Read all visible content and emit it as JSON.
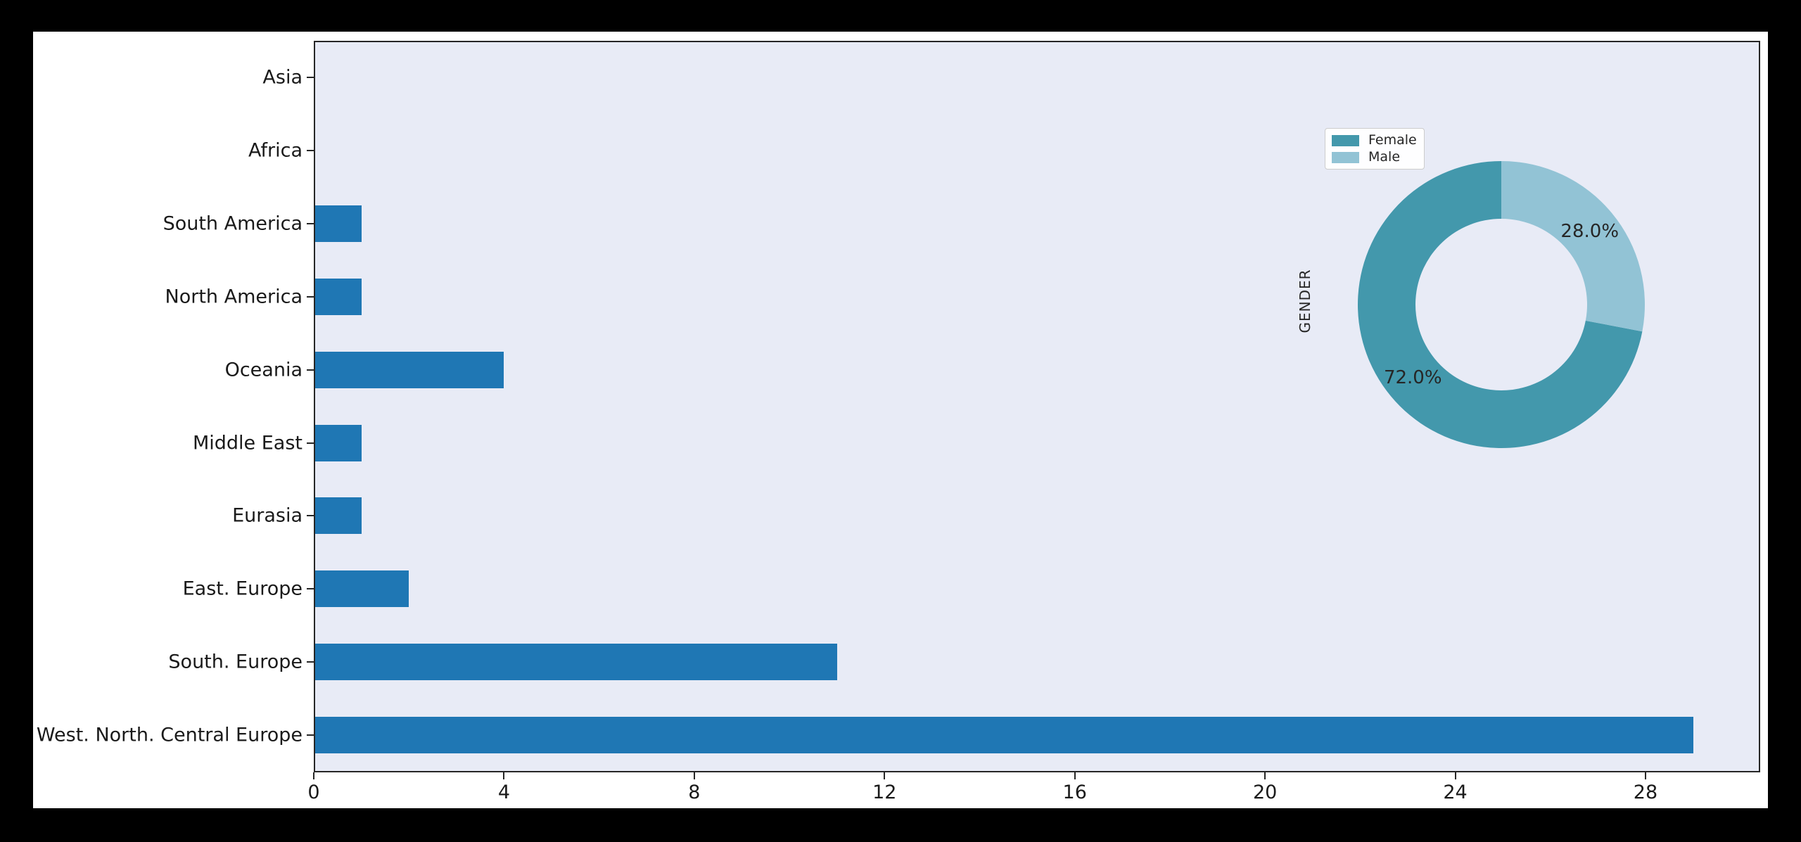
{
  "chart_data": [
    {
      "type": "bar",
      "orientation": "horizontal",
      "title": "",
      "xlabel": "",
      "ylabel": "",
      "categories": [
        "Asia",
        "Africa",
        "South America",
        "North America",
        "Oceania",
        "Middle East",
        "Eurasia",
        "East. Europe",
        "South. Europe",
        "West. North. Central Europe"
      ],
      "values": [
        0,
        0,
        1,
        1,
        4,
        1,
        1,
        2,
        11,
        29
      ],
      "x_ticks": [
        0,
        4,
        8,
        12,
        16,
        20,
        24,
        28
      ],
      "x_tick_labels": [
        "0",
        "4",
        "8",
        "12",
        "16",
        "20",
        "24",
        "28"
      ],
      "xlim": [
        0,
        30.4
      ],
      "grid": false,
      "bar_color": "#1f77b4",
      "plot_bg": "#e8ebf6",
      "axis_color": "#262626"
    },
    {
      "type": "pie",
      "subtype": "donut",
      "ylabel": "GENDER",
      "labels": [
        "Female",
        "Male"
      ],
      "values_percent": [
        72.0,
        28.0
      ],
      "pct_labels": [
        "72.0%",
        "28.0%"
      ],
      "colors": [
        "#4398ac",
        "#92c3d5"
      ],
      "start_angle_deg": 90,
      "counterclockwise": true,
      "donut_width_ratio": 0.4,
      "legend_position": "upper left"
    }
  ]
}
